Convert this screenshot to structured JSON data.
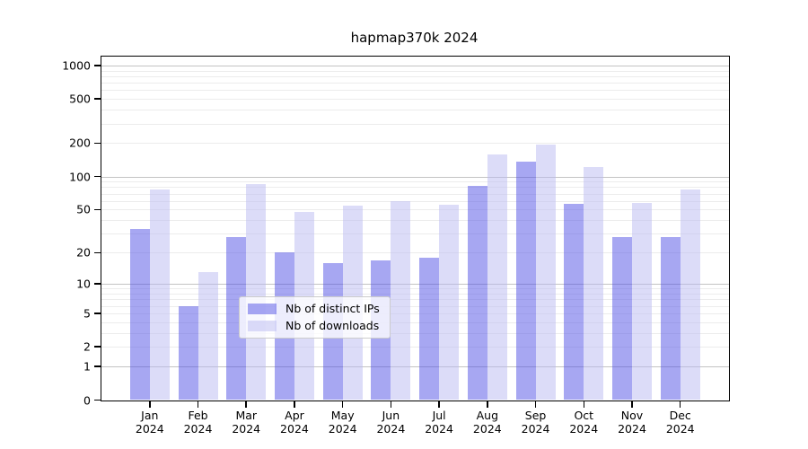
{
  "title": "hapmap370k 2024",
  "chart_data": {
    "type": "bar",
    "title": "hapmap370k 2024",
    "categories": [
      "Jan",
      "Feb",
      "Mar",
      "Apr",
      "May",
      "Jun",
      "Jul",
      "Aug",
      "Sep",
      "Oct",
      "Nov",
      "Dec"
    ],
    "x_year_label": "2024",
    "series": [
      {
        "name": "Nb of distinct IPs",
        "color": "rgba(80,80,230,0.5)",
        "values": [
          33,
          6,
          28,
          20,
          16,
          17,
          18,
          82,
          136,
          56,
          28,
          28
        ]
      },
      {
        "name": "Nb of downloads",
        "color": "rgba(185,185,242,0.5)",
        "values": [
          76,
          13,
          85,
          48,
          54,
          60,
          55,
          157,
          195,
          121,
          57,
          76
        ]
      }
    ],
    "yscale": "log1p",
    "y_ticks": [
      0,
      1,
      2,
      5,
      10,
      20,
      50,
      100,
      200,
      500,
      1000
    ],
    "y_major_gridlines": [
      1,
      10,
      100,
      1000
    ],
    "ylim": [
      0,
      1100
    ],
    "grid": true,
    "legend_position": "bottom-center-inside"
  },
  "colors": {
    "background": "#ffffff",
    "axis": "#000000",
    "grid_minor": "#ececec",
    "grid_major": "#c3c3c3",
    "legend_border": "#cccccc",
    "legend_background": "rgba(255,255,255,0.8)",
    "text": "#000000"
  }
}
